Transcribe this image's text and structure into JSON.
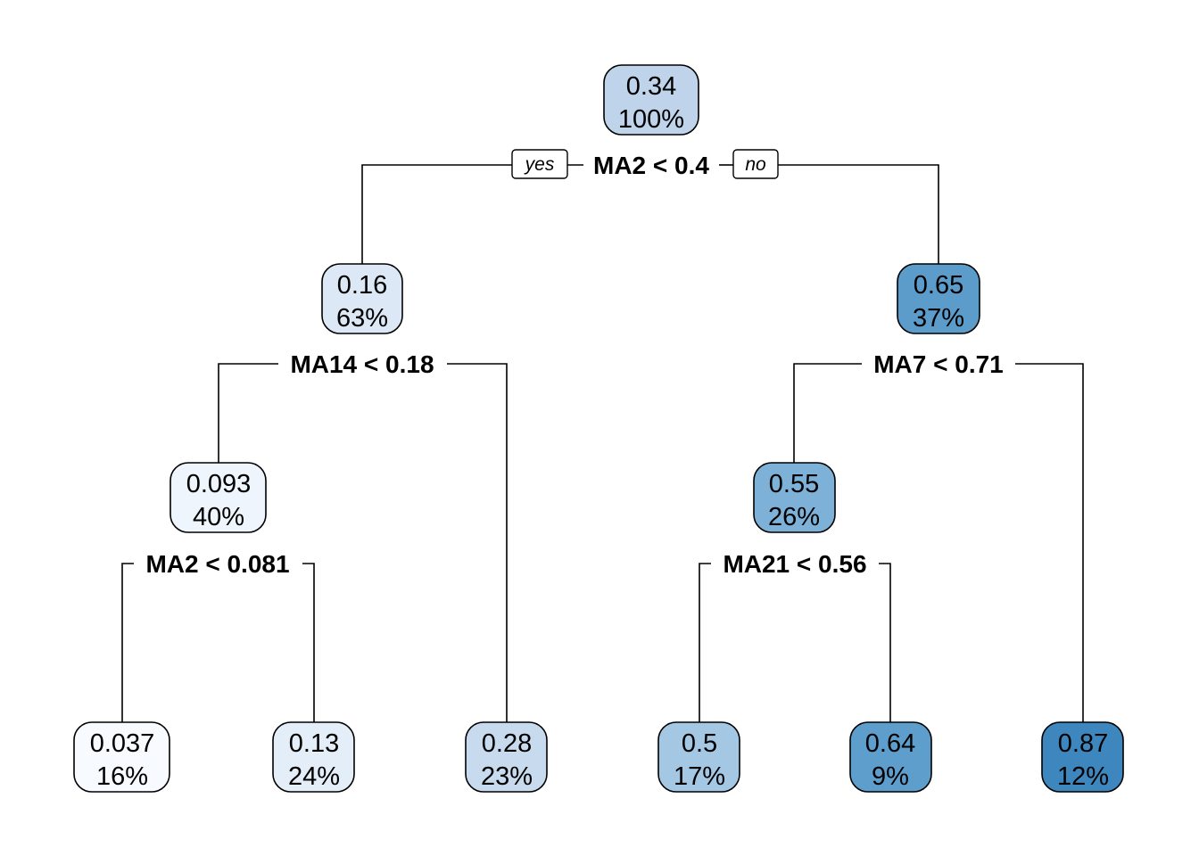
{
  "tree": {
    "branch_labels": {
      "left": "yes",
      "right": "no"
    },
    "nodes": [
      {
        "id": "root",
        "value": "0.34",
        "percent": "100%",
        "fill": "#BFD3EA"
      },
      {
        "id": "n1",
        "value": "0.16",
        "percent": "63%",
        "fill": "#DCE8F5"
      },
      {
        "id": "n2",
        "value": "0.65",
        "percent": "37%",
        "fill": "#5B9CCB"
      },
      {
        "id": "n3",
        "value": "0.093",
        "percent": "40%",
        "fill": "#EEF5FC"
      },
      {
        "id": "n4",
        "value": "0.55",
        "percent": "26%",
        "fill": "#7DB1D7"
      },
      {
        "id": "leaf1",
        "value": "0.037",
        "percent": "16%",
        "fill": "#F7FBFF"
      },
      {
        "id": "leaf2",
        "value": "0.13",
        "percent": "24%",
        "fill": "#E3EEF8"
      },
      {
        "id": "leaf3",
        "value": "0.28",
        "percent": "23%",
        "fill": "#C8DBEE"
      },
      {
        "id": "leaf4",
        "value": "0.5",
        "percent": "17%",
        "fill": "#A4C7E4"
      },
      {
        "id": "leaf5",
        "value": "0.64",
        "percent": "9%",
        "fill": "#5E9ECD"
      },
      {
        "id": "leaf6",
        "value": "0.87",
        "percent": "12%",
        "fill": "#3E86BE"
      }
    ],
    "splits": [
      {
        "id": "root",
        "label": "MA2 < 0.4"
      },
      {
        "id": "n1",
        "label": "MA14 < 0.18"
      },
      {
        "id": "n2",
        "label": "MA7 < 0.71"
      },
      {
        "id": "n3",
        "label": "MA2 < 0.081"
      },
      {
        "id": "n4",
        "label": "MA21 < 0.56"
      }
    ]
  }
}
